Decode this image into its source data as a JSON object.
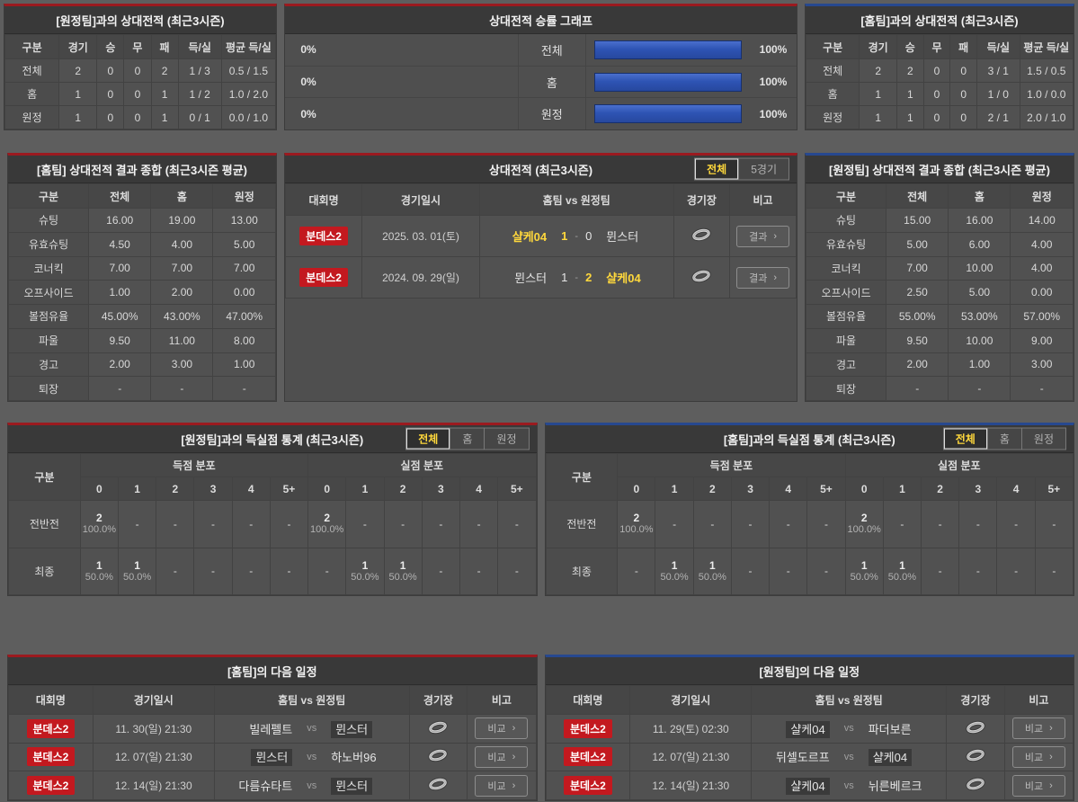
{
  "colors": {
    "home_accent": "#9b1a1f",
    "away_accent": "#27488f",
    "bar_blue": "#2e54b4",
    "highlight_yellow": "#ffd83c",
    "badge_red": "#c3191f",
    "panel_bg": "#4f4f4f",
    "title_bg": "#393939"
  },
  "ui": {
    "vs": "vs",
    "arrow": "›",
    "score_sep": "-"
  },
  "record_tables": [
    {
      "title": "[원정팀]과의 상대전적 (최근3시즌)",
      "headers": [
        "구분",
        "경기",
        "승",
        "무",
        "패",
        "득/실",
        "평균 득/실"
      ],
      "rows": [
        [
          "전체",
          "2",
          "0",
          "0",
          "2",
          "1 / 3",
          "0.5 / 1.5"
        ],
        [
          "홈",
          "1",
          "0",
          "0",
          "1",
          "1 / 2",
          "1.0 / 2.0"
        ],
        [
          "원정",
          "1",
          "0",
          "0",
          "1",
          "0 / 1",
          "0.0 / 1.0"
        ]
      ]
    },
    {
      "title": "[홈팀]과의 상대전적 (최근3시즌)",
      "headers": [
        "구분",
        "경기",
        "승",
        "무",
        "패",
        "득/실",
        "평균 득/실"
      ],
      "rows": [
        [
          "전체",
          "2",
          "2",
          "0",
          "0",
          "3 / 1",
          "1.5 / 0.5"
        ],
        [
          "홈",
          "1",
          "1",
          "0",
          "0",
          "1 / 0",
          "1.0 / 0.0"
        ],
        [
          "원정",
          "1",
          "1",
          "0",
          "0",
          "2 / 1",
          "2.0 / 1.0"
        ]
      ]
    }
  ],
  "winrate_graph": {
    "title": "상대전적 승률 그래프",
    "rows": [
      {
        "label": "전체",
        "left_label": "0%",
        "left_value": 0,
        "right_label": "100%",
        "right_value": 100
      },
      {
        "label": "홈",
        "left_label": "0%",
        "left_value": 0,
        "right_label": "100%",
        "right_value": 100
      },
      {
        "label": "원정",
        "left_label": "0%",
        "left_value": 0,
        "right_label": "100%",
        "right_value": 100
      }
    ]
  },
  "summary_tables": [
    {
      "title": "[홈팀] 상대전적 결과 종합 (최근3시즌 평균)",
      "headers": [
        "구분",
        "전체",
        "홈",
        "원정"
      ],
      "rows": [
        [
          "슈팅",
          "16.00",
          "19.00",
          "13.00"
        ],
        [
          "유효슈팅",
          "4.50",
          "4.00",
          "5.00"
        ],
        [
          "코너킥",
          "7.00",
          "7.00",
          "7.00"
        ],
        [
          "오프사이드",
          "1.00",
          "2.00",
          "0.00"
        ],
        [
          "볼점유율",
          "45.00%",
          "43.00%",
          "47.00%"
        ],
        [
          "파울",
          "9.50",
          "11.00",
          "8.00"
        ],
        [
          "경고",
          "2.00",
          "3.00",
          "1.00"
        ],
        [
          "퇴장",
          "-",
          "-",
          "-"
        ]
      ]
    },
    {
      "title": "[원정팀] 상대전적 결과 종합 (최근3시즌 평균)",
      "headers": [
        "구분",
        "전체",
        "홈",
        "원정"
      ],
      "rows": [
        [
          "슈팅",
          "15.00",
          "16.00",
          "14.00"
        ],
        [
          "유효슈팅",
          "5.00",
          "6.00",
          "4.00"
        ],
        [
          "코너킥",
          "7.00",
          "10.00",
          "4.00"
        ],
        [
          "오프사이드",
          "2.50",
          "5.00",
          "0.00"
        ],
        [
          "볼점유율",
          "55.00%",
          "53.00%",
          "57.00%"
        ],
        [
          "파울",
          "9.50",
          "10.00",
          "9.00"
        ],
        [
          "경고",
          "2.00",
          "1.00",
          "3.00"
        ],
        [
          "퇴장",
          "-",
          "-",
          "-"
        ]
      ]
    }
  ],
  "h2h": {
    "title": "상대전적 (최근3시즌)",
    "tabs": [
      {
        "label": "전체",
        "active": true
      },
      {
        "label": "5경기",
        "active": false
      }
    ],
    "headers": {
      "league": "대회명",
      "date": "경기일시",
      "teams": "홈팀  vs  원정팀",
      "stadium": "경기장",
      "note": "비고"
    },
    "button_label": "결과",
    "rows": [
      {
        "league": "분데스2",
        "date": "2025. 03. 01(토)",
        "home": "샬케04",
        "home_score": "1",
        "away_score": "0",
        "away": "뮌스터",
        "winner": "home"
      },
      {
        "league": "분데스2",
        "date": "2024. 09. 29(일)",
        "home": "뮌스터",
        "home_score": "1",
        "away_score": "2",
        "away": "샬케04",
        "winner": "away"
      }
    ]
  },
  "goal_tables": [
    {
      "title": "[원정팀]과의 득실점 통계 (최근3시즌)",
      "tabs": [
        {
          "label": "전체",
          "active": true
        },
        {
          "label": "홈",
          "active": false
        },
        {
          "label": "원정",
          "active": false
        }
      ],
      "corner": "구분",
      "groups": [
        "득점 분포",
        "실점 분포"
      ],
      "cols": [
        "0",
        "1",
        "2",
        "3",
        "4",
        "5+"
      ],
      "rows": [
        {
          "label": "전반전",
          "score": [
            [
              "2",
              "100.0%"
            ],
            "-",
            "-",
            "-",
            "-",
            "-"
          ],
          "concede": [
            [
              "2",
              "100.0%"
            ],
            "-",
            "-",
            "-",
            "-",
            "-"
          ]
        },
        {
          "label": "최종",
          "score": [
            [
              "1",
              "50.0%"
            ],
            [
              "1",
              "50.0%"
            ],
            "-",
            "-",
            "-",
            "-"
          ],
          "concede": [
            "-",
            [
              "1",
              "50.0%"
            ],
            [
              "1",
              "50.0%"
            ],
            "-",
            "-",
            "-"
          ]
        }
      ]
    },
    {
      "title": "[홈팀]과의 득실점 통계 (최근3시즌)",
      "tabs": [
        {
          "label": "전체",
          "active": true
        },
        {
          "label": "홈",
          "active": false
        },
        {
          "label": "원정",
          "active": false
        }
      ],
      "corner": "구분",
      "groups": [
        "득점 분포",
        "실점 분포"
      ],
      "cols": [
        "0",
        "1",
        "2",
        "3",
        "4",
        "5+"
      ],
      "rows": [
        {
          "label": "전반전",
          "score": [
            [
              "2",
              "100.0%"
            ],
            "-",
            "-",
            "-",
            "-",
            "-"
          ],
          "concede": [
            [
              "2",
              "100.0%"
            ],
            "-",
            "-",
            "-",
            "-",
            "-"
          ]
        },
        {
          "label": "최종",
          "score": [
            "-",
            [
              "1",
              "50.0%"
            ],
            [
              "1",
              "50.0%"
            ],
            "-",
            "-",
            "-"
          ],
          "concede": [
            [
              "1",
              "50.0%"
            ],
            [
              "1",
              "50.0%"
            ],
            "-",
            "-",
            "-",
            "-"
          ]
        }
      ]
    }
  ],
  "schedule_tables": [
    {
      "title": "[홈팀]의 다음 일정",
      "headers": {
        "league": "대회명",
        "date": "경기일시",
        "teams": "홈팀  vs  원정팀",
        "stadium": "경기장",
        "note": "비고"
      },
      "button_label": "비교",
      "rows": [
        {
          "league": "분데스2",
          "date": "11. 30(일) 21:30",
          "home": "빌레펠트",
          "away": "뮌스터",
          "highlight": "away"
        },
        {
          "league": "분데스2",
          "date": "12. 07(일) 21:30",
          "home": "뮌스터",
          "away": "하노버96",
          "highlight": "home"
        },
        {
          "league": "분데스2",
          "date": "12. 14(일) 21:30",
          "home": "다름슈타트",
          "away": "뮌스터",
          "highlight": "away"
        }
      ]
    },
    {
      "title": "[원정팀]의 다음 일정",
      "headers": {
        "league": "대회명",
        "date": "경기일시",
        "teams": "홈팀  vs  원정팀",
        "stadium": "경기장",
        "note": "비고"
      },
      "button_label": "비교",
      "rows": [
        {
          "league": "분데스2",
          "date": "11. 29(토) 02:30",
          "home": "샬케04",
          "away": "파더보른",
          "highlight": "home"
        },
        {
          "league": "분데스2",
          "date": "12. 07(일) 21:30",
          "home": "뒤셀도르프",
          "away": "샬케04",
          "highlight": "away"
        },
        {
          "league": "분데스2",
          "date": "12. 14(일) 21:30",
          "home": "샬케04",
          "away": "뉘른베르크",
          "highlight": "home"
        }
      ]
    }
  ]
}
